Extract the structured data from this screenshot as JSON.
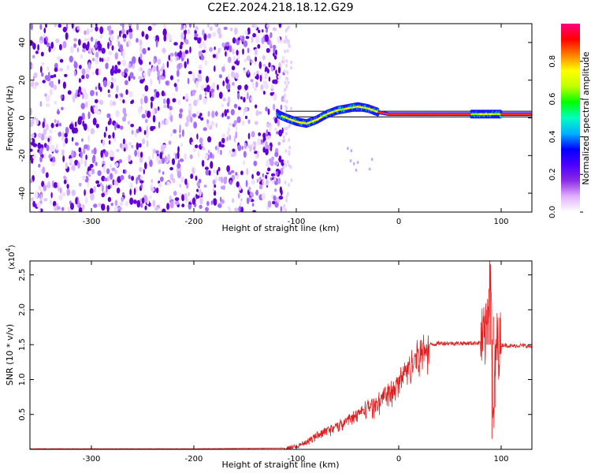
{
  "title": "C2E2.2024.218.18.12.G29",
  "chart_data": [
    {
      "type": "heatmap",
      "xlabel": "Height of straight line (km)",
      "ylabel": "Frequency (Hz)",
      "xlim": [
        -360,
        130
      ],
      "ylim": [
        -50,
        50
      ],
      "xticks": [
        -300,
        -200,
        -100,
        0,
        100
      ],
      "yticks": [
        -40,
        -20,
        0,
        20,
        40
      ],
      "noise_region_x": [
        -360,
        -112
      ],
      "noise_color": "#6a00e0",
      "signal_trace": {
        "x": [
          -118,
          -110,
          -100,
          -90,
          -80,
          -70,
          -60,
          -50,
          -40,
          -30,
          -20,
          -10,
          0,
          10,
          20,
          40,
          60,
          75,
          85,
          90,
          95,
          100,
          110,
          130
        ],
        "y": [
          2,
          0,
          -2,
          -3,
          -1,
          2,
          4,
          5,
          6,
          5,
          3,
          2,
          2,
          2,
          2,
          2,
          2,
          2,
          2,
          2,
          2,
          2,
          2,
          2
        ]
      },
      "reference_lines_hz": [
        0.5,
        3.5
      ],
      "colorbar": {
        "label": "Normalized spectral amplitude",
        "range": [
          0,
          1
        ],
        "ticks": [
          "0.0",
          "0.2",
          "0.4",
          "0.6",
          "0.8"
        ],
        "colors": [
          "#ffffff",
          "#e0b0ff",
          "#8a2be2",
          "#4b00ff",
          "#0000ff",
          "#00b0ff",
          "#00ffc0",
          "#00ff00",
          "#c0ff00",
          "#ffff00",
          "#ff8000",
          "#ff0000",
          "#ff0080"
        ]
      }
    },
    {
      "type": "line",
      "xlabel": "Height of straight line (km)",
      "ylabel": "SNR (10 * v/v)",
      "y_multiplier": "(x10",
      "y_multiplier_exp": "4",
      "xlim": [
        -360,
        130
      ],
      "ylim": [
        0,
        2.7
      ],
      "xticks": [
        -300,
        -200,
        -100,
        0,
        100
      ],
      "yticks": [
        "0.5",
        "1.0",
        "1.5",
        "2.0",
        "2.5"
      ],
      "line_color": "#e02020",
      "series": [
        {
          "x": [
            -360,
            -300,
            -200,
            -110,
            -100,
            -90,
            -80,
            -70,
            -60,
            -50,
            -40,
            -30,
            -20,
            -10,
            0,
            5,
            10,
            15,
            20,
            30,
            40,
            50,
            60,
            70,
            80,
            85,
            88,
            90,
            92,
            95,
            100,
            110,
            120,
            130
          ],
          "values": [
            0.01,
            0.01,
            0.01,
            0.02,
            0.06,
            0.12,
            0.22,
            0.3,
            0.36,
            0.44,
            0.55,
            0.64,
            0.74,
            0.86,
            1.0,
            1.15,
            1.25,
            1.38,
            1.46,
            1.5,
            1.52,
            1.52,
            1.52,
            1.52,
            1.53,
            1.6,
            2.3,
            2.65,
            0.2,
            1.5,
            1.5,
            1.48,
            1.49,
            1.47
          ]
        }
      ]
    }
  ]
}
